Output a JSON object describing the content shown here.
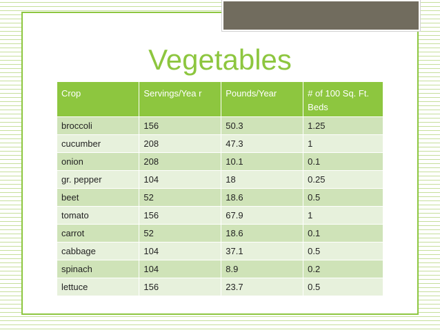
{
  "slide": {
    "title": "Vegetables"
  },
  "table": {
    "headers": [
      "Crop",
      "Servings/Yea r",
      "Pounds/Year",
      "# of 100 Sq. Ft. Beds"
    ],
    "rows": [
      [
        "broccoli",
        "156",
        "50.3",
        "1.25"
      ],
      [
        "cucumber",
        "208",
        "47.3",
        "1"
      ],
      [
        "onion",
        "208",
        "10.1",
        "0.1"
      ],
      [
        "gr. pepper",
        "104",
        "18",
        "0.25"
      ],
      [
        "beet",
        "52",
        "18.6",
        "0.5"
      ],
      [
        "tomato",
        "156",
        "67.9",
        "1"
      ],
      [
        "carrot",
        "52",
        "18.6",
        "0.1"
      ],
      [
        "cabbage",
        "104",
        "37.1",
        "0.5"
      ],
      [
        "spinach",
        "104",
        "8.9",
        "0.2"
      ],
      [
        "lettuce",
        "156",
        "23.7",
        "0.5"
      ]
    ]
  },
  "colors": {
    "accent_green": "#8dc63f",
    "row_odd": "#cfe3b8",
    "row_even": "#e7f1dc",
    "accent_block": "#716c5e"
  }
}
